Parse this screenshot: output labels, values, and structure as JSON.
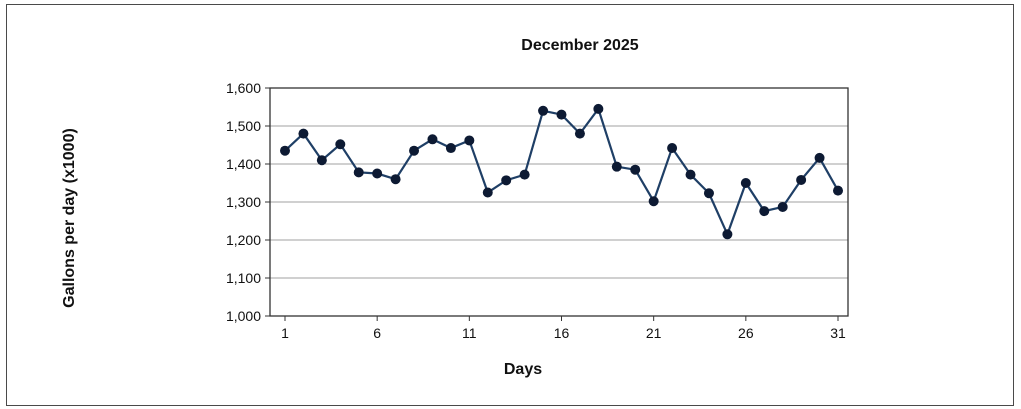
{
  "chart_data": {
    "type": "line",
    "title": "December  2025",
    "xlabel": "Days",
    "ylabel": "Gallons per day  (x1000)",
    "ylim": [
      1000,
      1600
    ],
    "yticks": [
      1000,
      1100,
      1200,
      1300,
      1400,
      1500,
      1600
    ],
    "ytick_labels": [
      "1,000",
      "1,100",
      "1,200",
      "1,300",
      "1,400",
      "1,500",
      "1,600"
    ],
    "xlim": [
      1,
      31
    ],
    "xticks": [
      1,
      6,
      11,
      16,
      21,
      26,
      31
    ],
    "xtick_labels": [
      "1",
      "6",
      "11",
      "16",
      "21",
      "26",
      "31"
    ],
    "grid": true,
    "series_color": "#1f3f66",
    "marker_color": "#0d1a33",
    "series": [
      {
        "x": [
          1,
          2,
          3,
          4,
          5,
          6,
          7,
          8,
          9,
          10,
          11,
          12,
          13,
          14,
          15,
          16,
          17,
          18,
          19,
          20,
          21,
          22,
          23,
          24,
          25,
          26,
          27,
          28,
          29,
          30,
          31
        ],
        "values": [
          1435,
          1480,
          1410,
          1452,
          1378,
          1375,
          1360,
          1435,
          1465,
          1442,
          1462,
          1325,
          1357,
          1372,
          1540,
          1530,
          1480,
          1545,
          1393,
          1385,
          1302,
          1442,
          1372,
          1323,
          1215,
          1350,
          1276,
          1287,
          1358,
          1416,
          1330
        ]
      }
    ]
  }
}
